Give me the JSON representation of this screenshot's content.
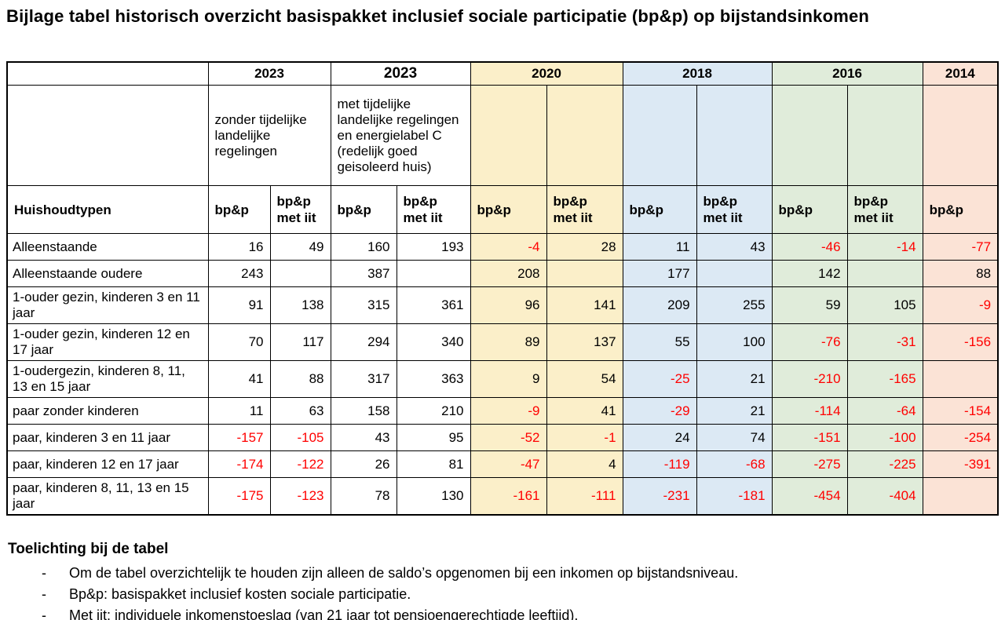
{
  "title": "Bijlage tabel historisch overzicht basispakket inclusief sociale participatie (bp&p) op bijstandsinkomen",
  "colors": {
    "c2020": "#FBEFC9",
    "c2018": "#DCE9F4",
    "c2016": "#E0ECDA",
    "c2014": "#FBE3D6",
    "negative_value": "#FF0000"
  },
  "table": {
    "year_groups": [
      {
        "year": "2023",
        "desc": "zonder tijdelijke landelijke regelingen"
      },
      {
        "year": "2023",
        "desc": "met tijdelijke landelijke regelingen en energielabel C (redelijk goed geisoleerd huis)"
      },
      {
        "year": "2020",
        "desc": ""
      },
      {
        "year": "2018",
        "desc": ""
      },
      {
        "year": "2016",
        "desc": ""
      },
      {
        "year": "2014",
        "desc": ""
      }
    ],
    "row_header": "Huishoudtypen",
    "columns": [
      "bp&p",
      "bp&p\nmet iit",
      "bp&p",
      "bp&p\nmet iit",
      "bp&p",
      "bp&p\nmet iit",
      "bp&p",
      "bp&p\nmet iit",
      "bp&p",
      "bp&p\nmet iit",
      "bp&p"
    ],
    "rows": [
      {
        "label": "Alleenstaande",
        "values": [
          16,
          49,
          160,
          193,
          -4,
          28,
          11,
          43,
          -46,
          -14,
          -77
        ]
      },
      {
        "label": "Alleenstaande oudere",
        "values": [
          243,
          null,
          387,
          null,
          208,
          null,
          177,
          null,
          142,
          null,
          88
        ]
      },
      {
        "label": "1-ouder gezin, kinderen 3 en 11 jaar",
        "values": [
          91,
          138,
          315,
          361,
          96,
          141,
          209,
          255,
          59,
          105,
          -9
        ]
      },
      {
        "label": "1-ouder gezin, kinderen 12 en 17 jaar",
        "values": [
          70,
          117,
          294,
          340,
          89,
          137,
          55,
          100,
          -76,
          -31,
          -156
        ]
      },
      {
        "label": "1-oudergezin, kinderen 8, 11, 13 en 15 jaar",
        "values": [
          41,
          88,
          317,
          363,
          9,
          54,
          -25,
          21,
          -210,
          -165,
          null
        ]
      },
      {
        "label": "paar zonder kinderen",
        "values": [
          11,
          63,
          158,
          210,
          -9,
          41,
          -29,
          21,
          -114,
          -64,
          -154
        ]
      },
      {
        "label": "paar, kinderen 3 en 11 jaar",
        "values": [
          -157,
          -105,
          43,
          95,
          -52,
          -1,
          24,
          74,
          -151,
          -100,
          -254
        ]
      },
      {
        "label": "paar, kinderen 12 en 17 jaar",
        "values": [
          -174,
          -122,
          26,
          81,
          -47,
          4,
          -119,
          -68,
          -275,
          -225,
          -391
        ]
      },
      {
        "label": "paar, kinderen 8, 11, 13 en 15 jaar",
        "values": [
          -175,
          -123,
          78,
          130,
          -161,
          -111,
          -231,
          -181,
          -454,
          -404,
          null
        ]
      }
    ]
  },
  "footer": {
    "heading": "Toelichting bij de tabel",
    "bullets": [
      "Om de tabel overzichtelijk te houden zijn alleen de saldo’s opgenomen bij een inkomen op bijstandsniveau.",
      "Bp&p: basispakket inclusief kosten sociale participatie.",
      "Met iit: individuele inkomenstoeslag (van 21 jaar tot pensioengerechtigde leeftijd)."
    ]
  }
}
